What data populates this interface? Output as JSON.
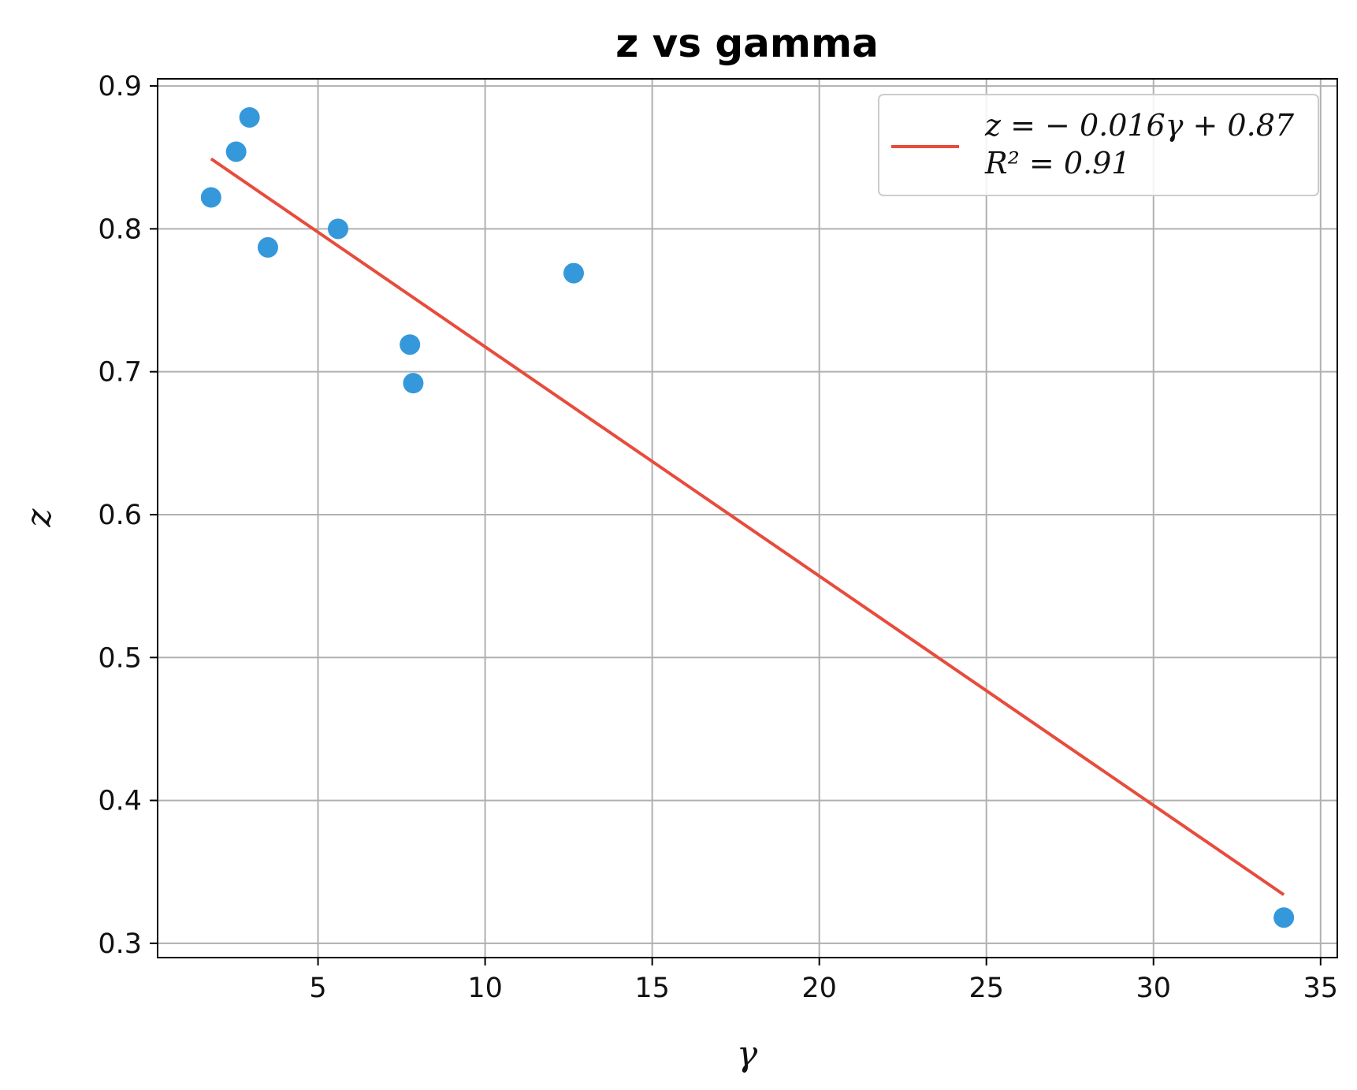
{
  "chart_data": {
    "type": "scatter",
    "title": "z vs gamma",
    "xlabel": "γ",
    "ylabel": "z",
    "xlim": [
      0.2,
      35.5
    ],
    "ylim": [
      0.29,
      0.905
    ],
    "xticks": [
      5,
      10,
      15,
      20,
      25,
      30,
      35
    ],
    "yticks": [
      0.3,
      0.4,
      0.5,
      0.6,
      0.7,
      0.8,
      0.9
    ],
    "xtick_labels": [
      "5",
      "10",
      "15",
      "20",
      "25",
      "30",
      "35"
    ],
    "ytick_labels": [
      "0.3",
      "0.4",
      "0.5",
      "0.6",
      "0.7",
      "0.8",
      "0.9"
    ],
    "grid": true,
    "legend_position": "top-right",
    "colors": {
      "points": "#3498db",
      "fit_line": "#e74c3c"
    },
    "points": {
      "x": [
        1.8,
        2.55,
        2.95,
        3.5,
        5.6,
        7.75,
        7.85,
        12.65,
        33.9
      ],
      "y": [
        0.822,
        0.854,
        0.878,
        0.787,
        0.8,
        0.719,
        0.692,
        0.769,
        0.318
      ]
    },
    "fit": {
      "x": [
        1.8,
        33.9
      ],
      "y": [
        0.849,
        0.334
      ],
      "legend_lines": [
        "z = − 0.016γ + 0.87",
        "R² = 0.91"
      ]
    }
  }
}
